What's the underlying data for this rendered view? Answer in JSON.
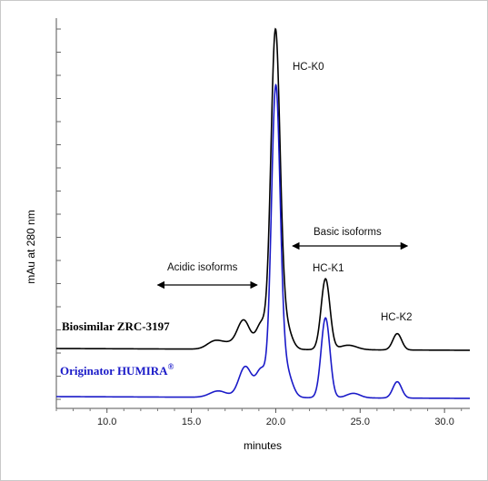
{
  "chart_data": {
    "type": "line",
    "xlabel": "minutes",
    "ylabel": "mAu at 280 nm",
    "xlim": [
      7.0,
      31.5
    ],
    "x_ticks": [
      10.0,
      15.0,
      20.0,
      25.0,
      30.0
    ],
    "x_tick_labels": [
      "10.0",
      "15.0",
      "20.0",
      "25.0",
      "30.0"
    ],
    "grid": false,
    "series": [
      {
        "name": "Biosimilar ZRC-3197",
        "color": "#000000",
        "baseline": 0.0,
        "peaks": [
          {
            "x": 16.4,
            "height": 0.09,
            "width": 0.45
          },
          {
            "x": 17.2,
            "height": 0.05,
            "width": 0.4
          },
          {
            "x": 18.1,
            "height": 0.32,
            "width": 0.38
          },
          {
            "x": 19.15,
            "height": 0.28,
            "width": 0.3
          },
          {
            "x": 19.98,
            "height": 3.45,
            "width": 0.27
          },
          {
            "x": 20.55,
            "height": 0.28,
            "width": 0.35
          },
          {
            "x": 22.95,
            "height": 0.78,
            "width": 0.26
          },
          {
            "x": 24.3,
            "height": 0.05,
            "width": 0.5
          },
          {
            "x": 27.2,
            "height": 0.18,
            "width": 0.26
          }
        ]
      },
      {
        "name": "Originator HUMIRA®",
        "color": "#1a1ac8",
        "baseline": -0.53,
        "peaks": [
          {
            "x": 16.6,
            "height": 0.07,
            "width": 0.5
          },
          {
            "x": 18.2,
            "height": 0.34,
            "width": 0.38
          },
          {
            "x": 19.15,
            "height": 0.3,
            "width": 0.3
          },
          {
            "x": 20.0,
            "height": 3.37,
            "width": 0.26
          },
          {
            "x": 20.6,
            "height": 0.3,
            "width": 0.35
          },
          {
            "x": 22.95,
            "height": 0.88,
            "width": 0.26
          },
          {
            "x": 24.6,
            "height": 0.05,
            "width": 0.4
          },
          {
            "x": 27.2,
            "height": 0.18,
            "width": 0.26
          }
        ]
      }
    ],
    "annotations": {
      "hc_k0": "HC-K0",
      "hc_k1": "HC-K1",
      "hc_k2": "HC-K2",
      "acidic": "Acidic isoforms",
      "basic": "Basic isoforms",
      "acidic_range": [
        13.0,
        18.9
      ],
      "basic_range": [
        21.0,
        27.8
      ]
    },
    "legend": {
      "biosimilar": "Biosimilar ZRC-3197",
      "originator": "Originator HUMIRA",
      "originator_mark": "®"
    }
  }
}
